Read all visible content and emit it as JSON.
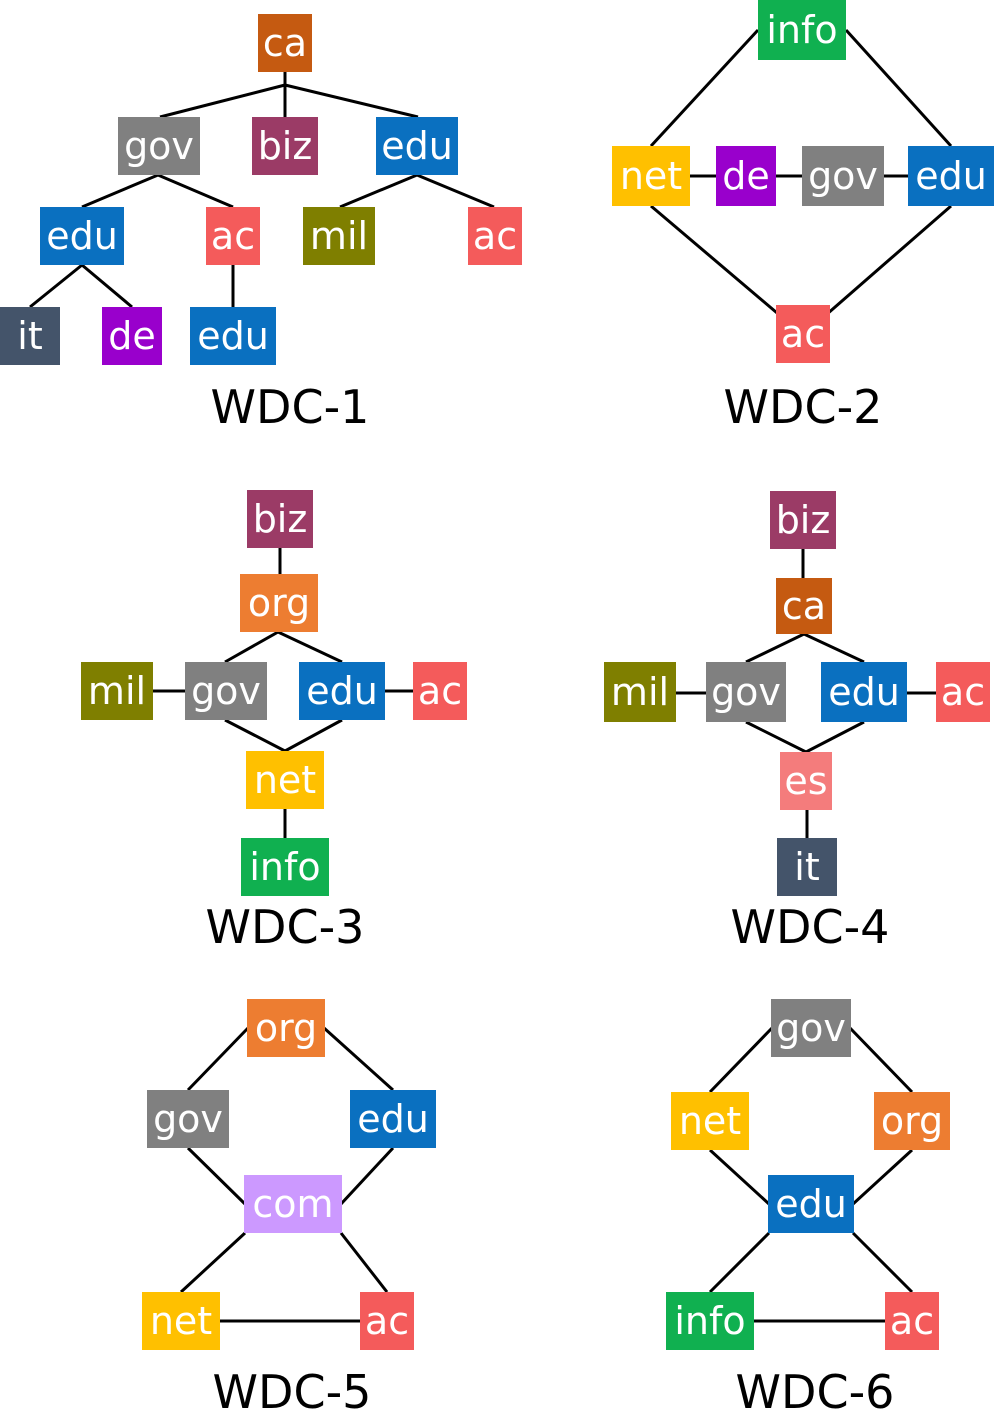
{
  "colors": {
    "ca": "#C55A11",
    "gov": "#808080",
    "biz": "#9B3B66",
    "edu": "#0A70C0",
    "mil": "#7F7F00",
    "ac": "#F45B5B",
    "it": "#44546A",
    "de": "#9900CC",
    "info": "#10B050",
    "net": "#FFC000",
    "org": "#ED7D31",
    "es": "#F47C7C",
    "com": "#CC99FF",
    "edge": "#000000"
  },
  "diagrams": [
    {
      "caption": "WDC-1",
      "nodes": [
        {
          "label": "ca"
        },
        {
          "label": "gov"
        },
        {
          "label": "biz"
        },
        {
          "label": "edu"
        },
        {
          "label": "edu"
        },
        {
          "label": "ac"
        },
        {
          "label": "mil"
        },
        {
          "label": "ac"
        },
        {
          "label": "it"
        },
        {
          "label": "de"
        },
        {
          "label": "edu"
        }
      ]
    },
    {
      "caption": "WDC-2",
      "nodes": [
        {
          "label": "info"
        },
        {
          "label": "net"
        },
        {
          "label": "de"
        },
        {
          "label": "gov"
        },
        {
          "label": "edu"
        },
        {
          "label": "ac"
        }
      ]
    },
    {
      "caption": "WDC-3",
      "nodes": [
        {
          "label": "biz"
        },
        {
          "label": "org"
        },
        {
          "label": "mil"
        },
        {
          "label": "gov"
        },
        {
          "label": "edu"
        },
        {
          "label": "ac"
        },
        {
          "label": "net"
        },
        {
          "label": "info"
        }
      ]
    },
    {
      "caption": "WDC-4",
      "nodes": [
        {
          "label": "biz"
        },
        {
          "label": "ca"
        },
        {
          "label": "mil"
        },
        {
          "label": "gov"
        },
        {
          "label": "edu"
        },
        {
          "label": "ac"
        },
        {
          "label": "es"
        },
        {
          "label": "it"
        }
      ]
    },
    {
      "caption": "WDC-5",
      "nodes": [
        {
          "label": "org"
        },
        {
          "label": "gov"
        },
        {
          "label": "edu"
        },
        {
          "label": "com"
        },
        {
          "label": "net"
        },
        {
          "label": "ac"
        }
      ]
    },
    {
      "caption": "WDC-6",
      "nodes": [
        {
          "label": "gov"
        },
        {
          "label": "net"
        },
        {
          "label": "org"
        },
        {
          "label": "edu"
        },
        {
          "label": "info"
        },
        {
          "label": "ac"
        }
      ]
    }
  ]
}
